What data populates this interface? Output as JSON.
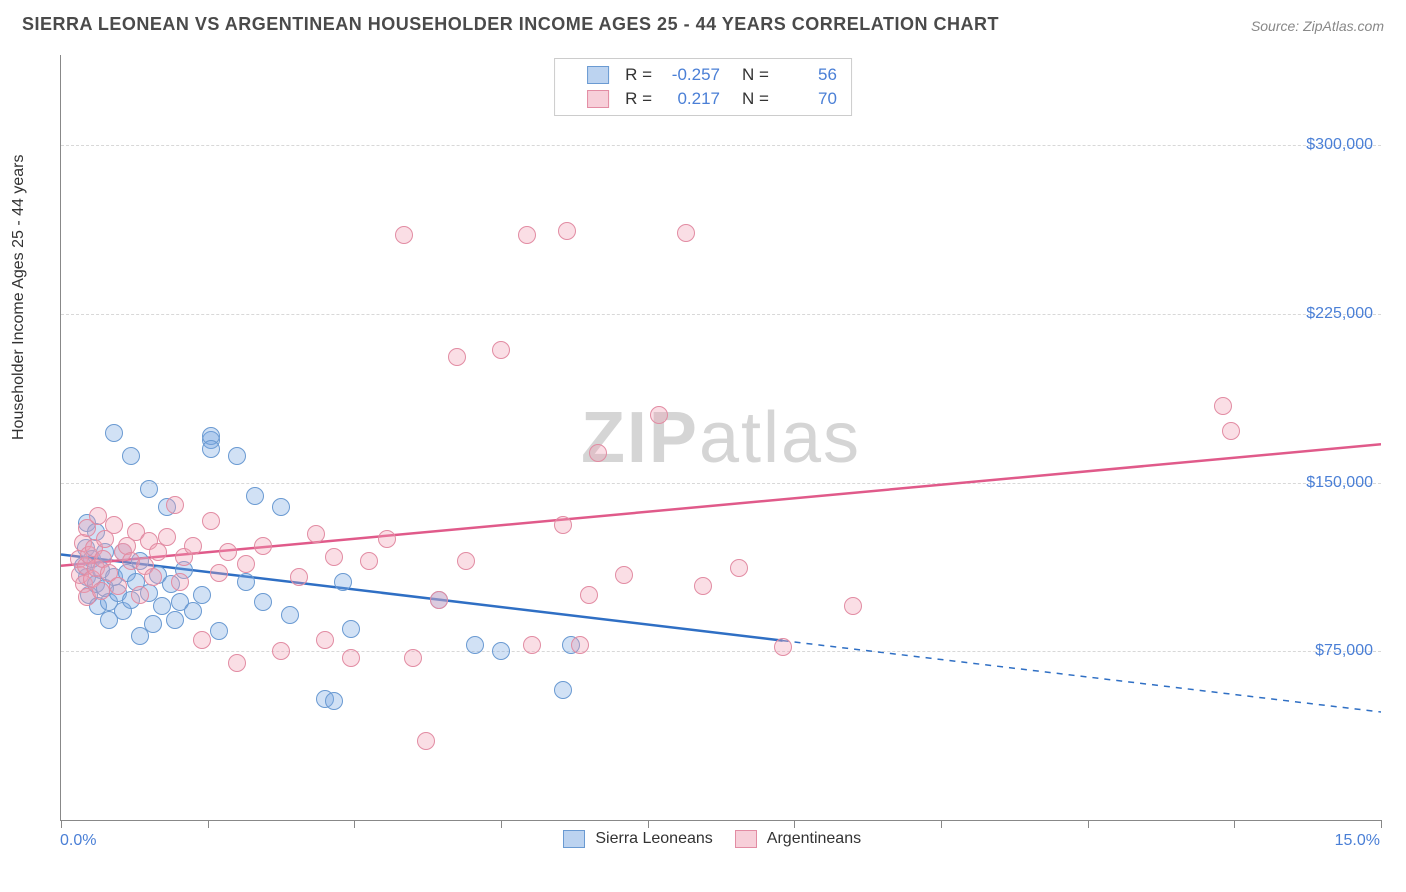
{
  "title": "SIERRA LEONEAN VS ARGENTINEAN HOUSEHOLDER INCOME AGES 25 - 44 YEARS CORRELATION CHART",
  "source": "Source: ZipAtlas.com",
  "ylabel": "Householder Income Ages 25 - 44 years",
  "watermark_bold": "ZIP",
  "watermark_light": "atlas",
  "chart": {
    "type": "scatter",
    "background_color": "#ffffff",
    "grid_color": "#d8d8d8",
    "axis_color": "#888888",
    "xlim": [
      0,
      15
    ],
    "ylim": [
      0,
      340000
    ],
    "x_min_label": "0.0%",
    "x_max_label": "15.0%",
    "x_ticks_at": [
      0,
      1.67,
      3.33,
      5.0,
      6.67,
      8.33,
      10.0,
      11.67,
      13.33,
      15.0
    ],
    "y_ticks": [
      {
        "value": 75000,
        "label": "$75,000"
      },
      {
        "value": 150000,
        "label": "$150,000"
      },
      {
        "value": 225000,
        "label": "$225,000"
      },
      {
        "value": 300000,
        "label": "$300,000"
      }
    ],
    "label_color": "#4a7fd6",
    "title_color": "#4a4a4a",
    "title_fontsize": 18,
    "label_fontsize": 16,
    "point_radius": 8,
    "series": [
      {
        "name": "Sierra Leoneans",
        "fill": "rgba(122,168,226,0.35)",
        "stroke": "#6a9ad2",
        "line_color": "#2f6fc4",
        "r": -0.257,
        "n": 56,
        "trend": {
          "y_at_xmin": 118000,
          "y_at_xmax": 48000,
          "solid_until_x": 8.2
        },
        "points": [
          [
            0.25,
            113000
          ],
          [
            0.28,
            121000
          ],
          [
            0.3,
            108000
          ],
          [
            0.3,
            132000
          ],
          [
            0.32,
            100000
          ],
          [
            0.35,
            116000
          ],
          [
            0.4,
            105000
          ],
          [
            0.4,
            128000
          ],
          [
            0.42,
            95000
          ],
          [
            0.45,
            111000
          ],
          [
            0.5,
            119000
          ],
          [
            0.5,
            103000
          ],
          [
            0.55,
            89000
          ],
          [
            0.55,
            97000
          ],
          [
            0.6,
            108000
          ],
          [
            0.6,
            172000
          ],
          [
            0.65,
            101000
          ],
          [
            0.7,
            119000
          ],
          [
            0.7,
            93000
          ],
          [
            0.75,
            110000
          ],
          [
            0.8,
            162000
          ],
          [
            0.8,
            98000
          ],
          [
            0.85,
            106000
          ],
          [
            0.9,
            115000
          ],
          [
            0.9,
            82000
          ],
          [
            1.0,
            101000
          ],
          [
            1.0,
            147000
          ],
          [
            1.05,
            87000
          ],
          [
            1.1,
            109000
          ],
          [
            1.15,
            95000
          ],
          [
            1.2,
            139000
          ],
          [
            1.25,
            105000
          ],
          [
            1.3,
            89000
          ],
          [
            1.35,
            97000
          ],
          [
            1.4,
            111000
          ],
          [
            1.5,
            93000
          ],
          [
            1.6,
            100000
          ],
          [
            1.7,
            169000
          ],
          [
            1.7,
            170500
          ],
          [
            1.7,
            165000
          ],
          [
            1.8,
            84000
          ],
          [
            2.0,
            162000
          ],
          [
            2.1,
            106000
          ],
          [
            2.2,
            144000
          ],
          [
            2.3,
            97000
          ],
          [
            2.5,
            139000
          ],
          [
            2.6,
            91000
          ],
          [
            3.0,
            54000
          ],
          [
            3.1,
            53000
          ],
          [
            3.2,
            106000
          ],
          [
            3.3,
            85000
          ],
          [
            4.3,
            98000
          ],
          [
            4.7,
            78000
          ],
          [
            5.0,
            75000
          ],
          [
            5.7,
            58000
          ],
          [
            5.8,
            78000
          ]
        ]
      },
      {
        "name": "Argentineans",
        "fill": "rgba(240,160,180,0.35)",
        "stroke": "#e28ca3",
        "line_color": "#e05a8a",
        "r": 0.217,
        "n": 70,
        "trend": {
          "y_at_xmin": 113000,
          "y_at_xmax": 167000,
          "solid_until_x": 15.0
        },
        "points": [
          [
            0.2,
            116000
          ],
          [
            0.22,
            109000
          ],
          [
            0.25,
            123000
          ],
          [
            0.26,
            105000
          ],
          [
            0.28,
            113000
          ],
          [
            0.3,
            130000
          ],
          [
            0.3,
            99000
          ],
          [
            0.32,
            118000
          ],
          [
            0.35,
            107000
          ],
          [
            0.38,
            121000
          ],
          [
            0.4,
            112000
          ],
          [
            0.42,
            135000
          ],
          [
            0.45,
            102000
          ],
          [
            0.48,
            116000
          ],
          [
            0.5,
            125000
          ],
          [
            0.55,
            110000
          ],
          [
            0.6,
            131000
          ],
          [
            0.65,
            104000
          ],
          [
            0.7,
            119000
          ],
          [
            0.75,
            122000
          ],
          [
            0.8,
            115000
          ],
          [
            0.85,
            128000
          ],
          [
            0.9,
            100000
          ],
          [
            0.95,
            113000
          ],
          [
            1.0,
            124000
          ],
          [
            1.05,
            108000
          ],
          [
            1.1,
            119000
          ],
          [
            1.2,
            126000
          ],
          [
            1.3,
            140000
          ],
          [
            1.35,
            106000
          ],
          [
            1.4,
            117000
          ],
          [
            1.5,
            122000
          ],
          [
            1.6,
            80000
          ],
          [
            1.7,
            133000
          ],
          [
            1.8,
            110000
          ],
          [
            1.9,
            119000
          ],
          [
            2.0,
            70000
          ],
          [
            2.1,
            114000
          ],
          [
            2.3,
            122000
          ],
          [
            2.5,
            75000
          ],
          [
            2.7,
            108000
          ],
          [
            2.9,
            127000
          ],
          [
            3.0,
            80000
          ],
          [
            3.1,
            117000
          ],
          [
            3.3,
            72000
          ],
          [
            3.5,
            115000
          ],
          [
            3.7,
            125000
          ],
          [
            3.9,
            260000
          ],
          [
            4.0,
            72000
          ],
          [
            4.3,
            98000
          ],
          [
            4.5,
            206000
          ],
          [
            4.6,
            115000
          ],
          [
            5.0,
            209000
          ],
          [
            5.3,
            260000
          ],
          [
            5.35,
            78000
          ],
          [
            5.7,
            131000
          ],
          [
            5.75,
            262000
          ],
          [
            6.0,
            100000
          ],
          [
            5.9,
            78000
          ],
          [
            6.1,
            163000
          ],
          [
            6.4,
            109000
          ],
          [
            6.8,
            180000
          ],
          [
            7.1,
            261000
          ],
          [
            7.3,
            104000
          ],
          [
            7.7,
            112000
          ],
          [
            8.2,
            77000
          ],
          [
            9.0,
            95000
          ],
          [
            13.2,
            184000
          ],
          [
            13.3,
            173000
          ],
          [
            4.15,
            35000
          ]
        ]
      }
    ]
  },
  "bottom_legend": [
    {
      "label": "Sierra Leoneans",
      "fill": "rgba(122,168,226,0.5)",
      "border": "#6a9ad2"
    },
    {
      "label": "Argentineans",
      "fill": "rgba(240,160,180,0.5)",
      "border": "#e28ca3"
    }
  ]
}
